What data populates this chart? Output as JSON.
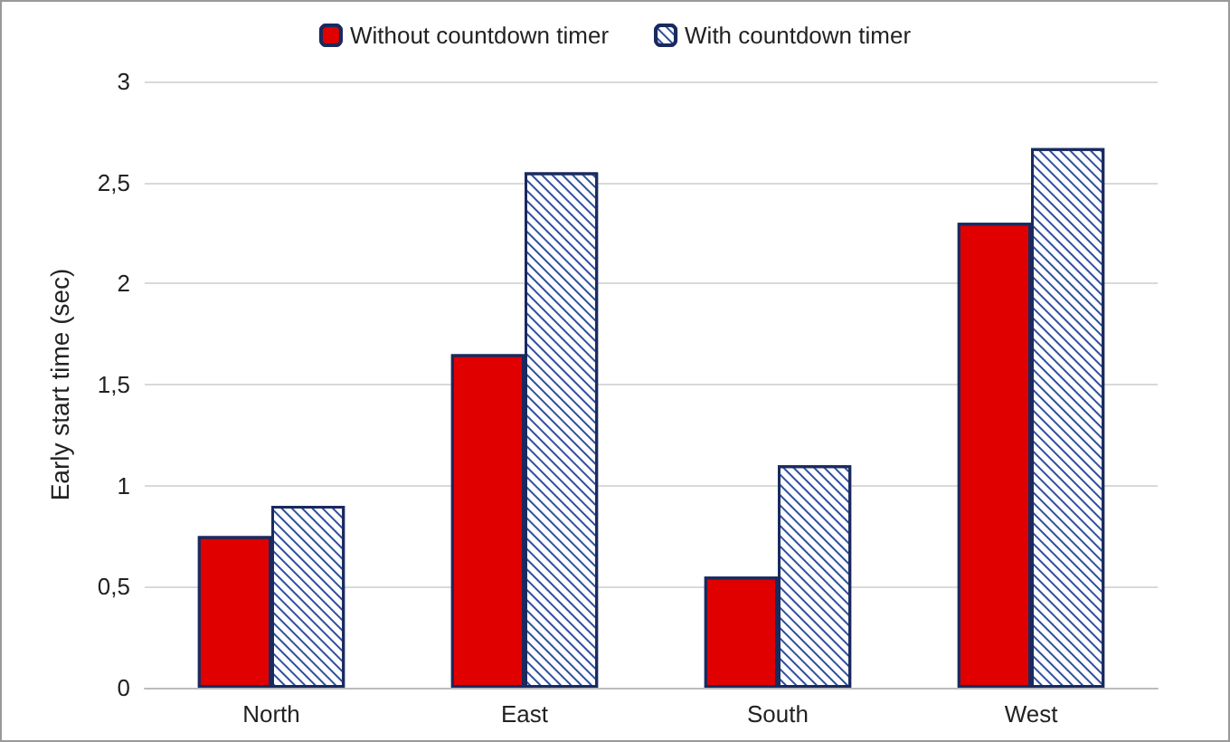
{
  "chart_data": {
    "type": "bar",
    "ylabel": "Early start time (sec)",
    "categories": [
      "North",
      "East",
      "South",
      "West"
    ],
    "series": [
      {
        "name": "Without countdown timer",
        "color": "#e00000",
        "values": [
          0.75,
          1.65,
          0.55,
          2.3
        ]
      },
      {
        "name": "With countdown timer",
        "color": "#ffffff",
        "values": [
          0.9,
          2.55,
          1.1,
          2.67
        ]
      }
    ],
    "ylim": [
      0,
      3
    ],
    "yticks": [
      {
        "value": 0,
        "label": "0"
      },
      {
        "value": 0.5,
        "label": "0,5"
      },
      {
        "value": 1,
        "label": "1"
      },
      {
        "value": 1.5,
        "label": "1,5"
      },
      {
        "value": 2,
        "label": "2"
      },
      {
        "value": 2.5,
        "label": "2,5"
      },
      {
        "value": 3,
        "label": "3"
      }
    ],
    "grid": "y",
    "legend": "top"
  }
}
